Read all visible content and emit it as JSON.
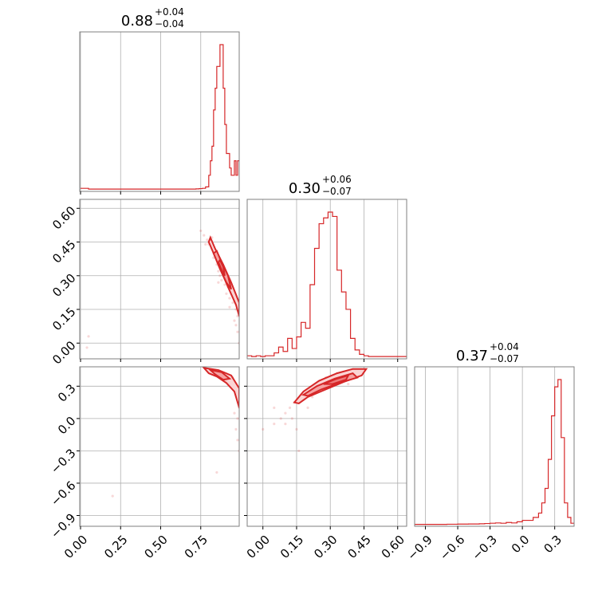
{
  "chart_data": {
    "type": "corner",
    "color": "#d62728",
    "grid": true,
    "parameters": [
      {
        "median": "0.88",
        "plus": "+0.04",
        "minus": "−0.04",
        "range": [
          -0.005,
          0.99
        ],
        "ticks": [
          0.0,
          0.25,
          0.5,
          0.75
        ],
        "tick_labels": [
          "0.00",
          "0.25",
          "0.50",
          "0.75"
        ]
      },
      {
        "median": "0.30",
        "plus": "+0.06",
        "minus": "−0.07",
        "range": [
          -0.07,
          0.64
        ],
        "ticks": [
          0.0,
          0.15,
          0.3,
          0.45,
          0.6
        ],
        "tick_labels": [
          "0.00",
          "0.15",
          "0.30",
          "0.45",
          "0.60"
        ]
      },
      {
        "median": "0.37",
        "plus": "+0.04",
        "minus": "−0.07",
        "range": [
          -1.0,
          0.48
        ],
        "ticks": [
          -0.9,
          -0.6,
          -0.3,
          0.0,
          0.3
        ],
        "tick_labels": [
          "−0.9",
          "−0.6",
          "−0.3",
          "0.0",
          "0.3"
        ]
      }
    ],
    "histograms": [
      {
        "param": 0,
        "edges": [
          0.0,
          0.05,
          0.1,
          0.15,
          0.2,
          0.25,
          0.3,
          0.35,
          0.4,
          0.45,
          0.5,
          0.55,
          0.6,
          0.65,
          0.7,
          0.72,
          0.74,
          0.76,
          0.78,
          0.8,
          0.81,
          0.82,
          0.83,
          0.84,
          0.85,
          0.86,
          0.87,
          0.88,
          0.89,
          0.9,
          0.91,
          0.92,
          0.93,
          0.94,
          0.95,
          0.96,
          0.97,
          0.98,
          0.99
        ],
        "counts": [
          0.01,
          0.005,
          0.005,
          0.005,
          0.005,
          0.005,
          0.005,
          0.005,
          0.005,
          0.005,
          0.005,
          0.005,
          0.005,
          0.005,
          0.005,
          0.006,
          0.008,
          0.01,
          0.02,
          0.1,
          0.2,
          0.3,
          0.55,
          0.7,
          0.85,
          0.85,
          1.0,
          1.0,
          0.7,
          0.45,
          0.25,
          0.25,
          0.15,
          0.1,
          0.1,
          0.2,
          0.1,
          0.2
        ]
      },
      {
        "param": 1,
        "edges": [
          -0.07,
          -0.05,
          -0.03,
          -0.01,
          0.01,
          0.03,
          0.05,
          0.07,
          0.09,
          0.11,
          0.13,
          0.15,
          0.17,
          0.19,
          0.21,
          0.23,
          0.25,
          0.27,
          0.29,
          0.31,
          0.33,
          0.35,
          0.37,
          0.39,
          0.41,
          0.43,
          0.45,
          0.47,
          0.49,
          0.51,
          0.53,
          0.55,
          0.57,
          0.59,
          0.61,
          0.64
        ],
        "counts": [
          0.01,
          0.005,
          0.01,
          0.005,
          0.01,
          0.01,
          0.03,
          0.07,
          0.04,
          0.13,
          0.06,
          0.14,
          0.24,
          0.2,
          0.5,
          0.75,
          0.92,
          0.96,
          1.0,
          0.97,
          0.6,
          0.45,
          0.33,
          0.13,
          0.05,
          0.02,
          0.01,
          0.005,
          0.005,
          0.005,
          0.005,
          0.005,
          0.005,
          0.005,
          0.005
        ]
      },
      {
        "param": 2,
        "edges": [
          -1.0,
          -0.95,
          -0.9,
          -0.85,
          -0.8,
          -0.75,
          -0.7,
          -0.65,
          -0.6,
          -0.55,
          -0.5,
          -0.45,
          -0.4,
          -0.35,
          -0.3,
          -0.25,
          -0.2,
          -0.15,
          -0.1,
          -0.05,
          0.0,
          0.05,
          0.1,
          0.15,
          0.18,
          0.21,
          0.24,
          0.27,
          0.3,
          0.33,
          0.36,
          0.39,
          0.42,
          0.45,
          0.48
        ],
        "counts": [
          0.002,
          0.002,
          0.002,
          0.002,
          0.002,
          0.002,
          0.003,
          0.003,
          0.004,
          0.004,
          0.005,
          0.005,
          0.006,
          0.008,
          0.01,
          0.012,
          0.01,
          0.015,
          0.012,
          0.02,
          0.03,
          0.03,
          0.05,
          0.08,
          0.15,
          0.25,
          0.45,
          0.75,
          0.95,
          1.0,
          0.6,
          0.15,
          0.05,
          0.01
        ]
      }
    ],
    "pairs": [
      {
        "x": 0,
        "y": 1,
        "points": [
          [
            0.75,
            0.5
          ],
          [
            0.77,
            0.48
          ],
          [
            0.79,
            0.46
          ],
          [
            0.8,
            0.44
          ],
          [
            0.82,
            0.42
          ],
          [
            0.84,
            0.4
          ],
          [
            0.8,
            0.45
          ],
          [
            0.83,
            0.38
          ],
          [
            0.85,
            0.35
          ],
          [
            0.86,
            0.32
          ],
          [
            0.87,
            0.3
          ],
          [
            0.88,
            0.28
          ],
          [
            0.9,
            0.26
          ],
          [
            0.91,
            0.22
          ],
          [
            0.93,
            0.2
          ],
          [
            0.95,
            0.18
          ],
          [
            0.97,
            0.15
          ],
          [
            0.98,
            0.12
          ],
          [
            0.96,
            0.1
          ],
          [
            0.98,
            0.05
          ],
          [
            0.88,
            0.35
          ],
          [
            0.85,
            0.4
          ],
          [
            0.9,
            0.3
          ],
          [
            0.92,
            0.25
          ],
          [
            0.82,
            0.47
          ],
          [
            0.78,
            0.44
          ],
          [
            0.94,
            0.22
          ],
          [
            0.97,
            0.08
          ],
          [
            0.05,
            0.03
          ],
          [
            0.04,
            -0.02
          ],
          [
            0.99,
            0.0
          ],
          [
            0.86,
            0.27
          ],
          [
            0.89,
            0.33
          ],
          [
            0.93,
            0.16
          ]
        ],
        "contours": [
          {
            "level": 1,
            "path": [
              [
                0.8,
                0.45
              ],
              [
                0.86,
                0.35
              ],
              [
                0.92,
                0.25
              ],
              [
                0.97,
                0.17
              ],
              [
                0.99,
                0.12
              ],
              [
                0.99,
                0.18
              ],
              [
                0.94,
                0.27
              ],
              [
                0.89,
                0.35
              ],
              [
                0.84,
                0.42
              ],
              [
                0.81,
                0.47
              ]
            ]
          },
          {
            "level": 2,
            "path": [
              [
                0.83,
                0.4
              ],
              [
                0.87,
                0.33
              ],
              [
                0.91,
                0.27
              ],
              [
                0.94,
                0.24
              ],
              [
                0.92,
                0.3
              ],
              [
                0.88,
                0.36
              ],
              [
                0.85,
                0.41
              ]
            ]
          },
          {
            "level": 3,
            "path": [
              [
                0.86,
                0.36
              ],
              [
                0.89,
                0.31
              ],
              [
                0.9,
                0.3
              ],
              [
                0.89,
                0.34
              ],
              [
                0.87,
                0.37
              ]
            ]
          }
        ]
      },
      {
        "x": 0,
        "y": 2,
        "points": [
          [
            0.78,
            0.47
          ],
          [
            0.8,
            0.45
          ],
          [
            0.85,
            0.44
          ],
          [
            0.9,
            0.42
          ],
          [
            0.95,
            0.38
          ],
          [
            0.97,
            0.3
          ],
          [
            0.98,
            0.2
          ],
          [
            0.99,
            0.1
          ],
          [
            0.98,
            0.0
          ],
          [
            0.97,
            -0.1
          ],
          [
            0.98,
            -0.2
          ],
          [
            0.85,
            -0.5
          ],
          [
            0.2,
            -0.72
          ],
          [
            0.92,
            0.35
          ],
          [
            0.88,
            0.43
          ],
          [
            0.96,
            0.05
          ],
          [
            0.99,
            -0.3
          ]
        ],
        "contours": [
          {
            "level": 1,
            "path": [
              [
                0.77,
                0.47
              ],
              [
                0.86,
                0.45
              ],
              [
                0.94,
                0.4
              ],
              [
                0.99,
                0.28
              ],
              [
                0.99,
                0.1
              ],
              [
                0.96,
                0.25
              ],
              [
                0.91,
                0.33
              ],
              [
                0.85,
                0.39
              ],
              [
                0.8,
                0.42
              ]
            ]
          },
          {
            "level": 2,
            "path": [
              [
                0.81,
                0.45
              ],
              [
                0.88,
                0.43
              ],
              [
                0.93,
                0.37
              ],
              [
                0.89,
                0.36
              ],
              [
                0.84,
                0.41
              ]
            ]
          }
        ]
      },
      {
        "x": 1,
        "y": 2,
        "points": [
          [
            0.0,
            -0.1
          ],
          [
            0.05,
            -0.05
          ],
          [
            0.08,
            0.0
          ],
          [
            0.1,
            0.05
          ],
          [
            0.12,
            0.1
          ],
          [
            0.14,
            0.15
          ],
          [
            0.15,
            -0.1
          ],
          [
            0.16,
            -0.3
          ],
          [
            0.2,
            0.1
          ],
          [
            0.25,
            0.25
          ],
          [
            0.3,
            0.3
          ],
          [
            0.35,
            0.35
          ],
          [
            0.4,
            0.4
          ],
          [
            0.45,
            0.45
          ],
          [
            0.22,
            0.2
          ],
          [
            0.18,
            0.18
          ],
          [
            0.33,
            0.42
          ],
          [
            0.28,
            0.38
          ],
          [
            0.38,
            0.32
          ],
          [
            0.05,
            0.1
          ],
          [
            0.42,
            0.44
          ],
          [
            0.13,
            0.0
          ],
          [
            0.1,
            -0.05
          ]
        ],
        "contours": [
          {
            "level": 1,
            "path": [
              [
                0.14,
                0.15
              ],
              [
                0.18,
                0.25
              ],
              [
                0.25,
                0.35
              ],
              [
                0.33,
                0.42
              ],
              [
                0.4,
                0.46
              ],
              [
                0.46,
                0.46
              ],
              [
                0.44,
                0.4
              ],
              [
                0.36,
                0.34
              ],
              [
                0.28,
                0.27
              ],
              [
                0.2,
                0.2
              ],
              [
                0.16,
                0.14
              ]
            ]
          },
          {
            "level": 2,
            "path": [
              [
                0.18,
                0.22
              ],
              [
                0.24,
                0.3
              ],
              [
                0.32,
                0.37
              ],
              [
                0.4,
                0.42
              ],
              [
                0.42,
                0.38
              ],
              [
                0.34,
                0.33
              ],
              [
                0.26,
                0.27
              ],
              [
                0.2,
                0.21
              ]
            ]
          },
          {
            "level": 3,
            "path": [
              [
                0.27,
                0.32
              ],
              [
                0.33,
                0.37
              ],
              [
                0.38,
                0.4
              ],
              [
                0.37,
                0.36
              ],
              [
                0.31,
                0.32
              ]
            ]
          }
        ]
      }
    ]
  }
}
